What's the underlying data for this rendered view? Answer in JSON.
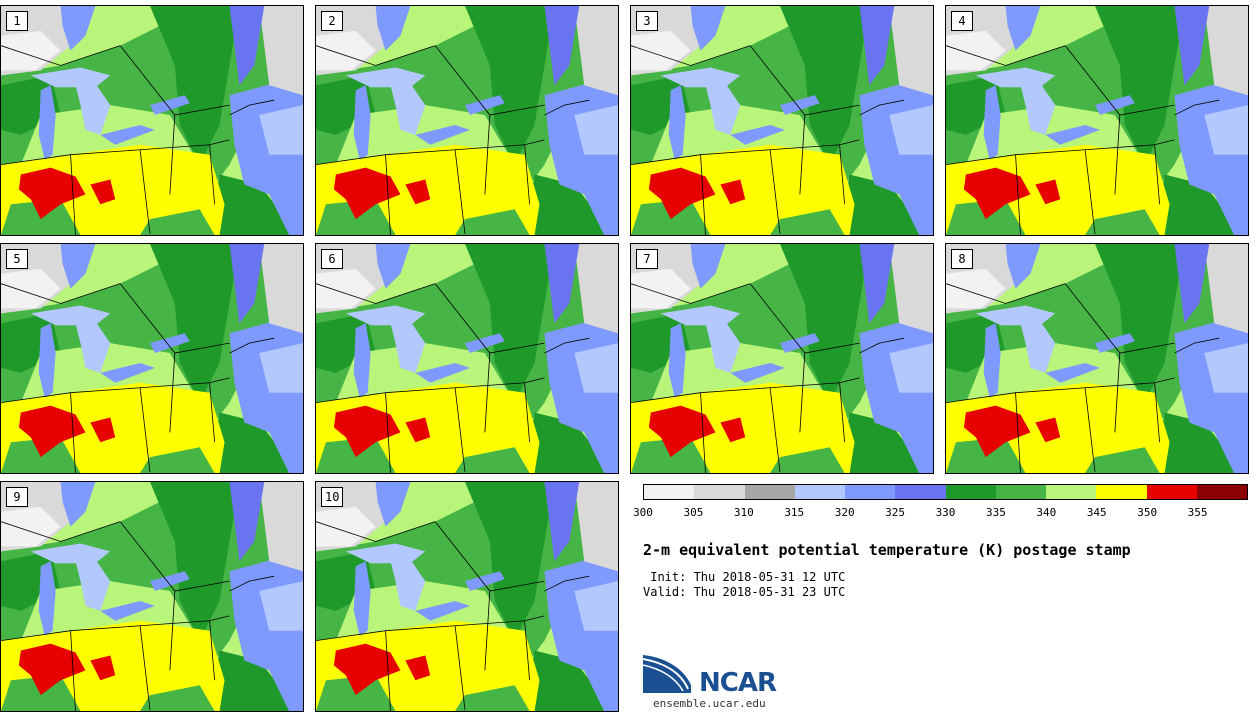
{
  "stamps": [
    {
      "label": "1"
    },
    {
      "label": "2"
    },
    {
      "label": "3"
    },
    {
      "label": "4"
    },
    {
      "label": "5"
    },
    {
      "label": "6"
    },
    {
      "label": "7"
    },
    {
      "label": "8"
    },
    {
      "label": "9"
    },
    {
      "label": "10"
    }
  ],
  "colorbar": {
    "ticks": [
      "300",
      "305",
      "310",
      "315",
      "320",
      "325",
      "330",
      "335",
      "340",
      "345",
      "350",
      "355"
    ],
    "colors": [
      "#f2f2f2",
      "#d9d9d9",
      "#a6a6a6",
      "#b3c8ff",
      "#7f9aff",
      "#6a74f0",
      "#1f9a2a",
      "#46b545",
      "#b8f57a",
      "#ffff00",
      "#e60000",
      "#8b0000"
    ]
  },
  "title": "2-m equivalent potential temperature (K) postage stamp",
  "init_line": " Init: Thu 2018-05-31 12 UTC",
  "valid_line": "Valid: Thu 2018-05-31 23 UTC",
  "logo": {
    "text": "NCAR",
    "url": "ensemble.ucar.edu",
    "colors": {
      "blue": "#1a4f92",
      "arc": "#3b8fd4"
    }
  }
}
